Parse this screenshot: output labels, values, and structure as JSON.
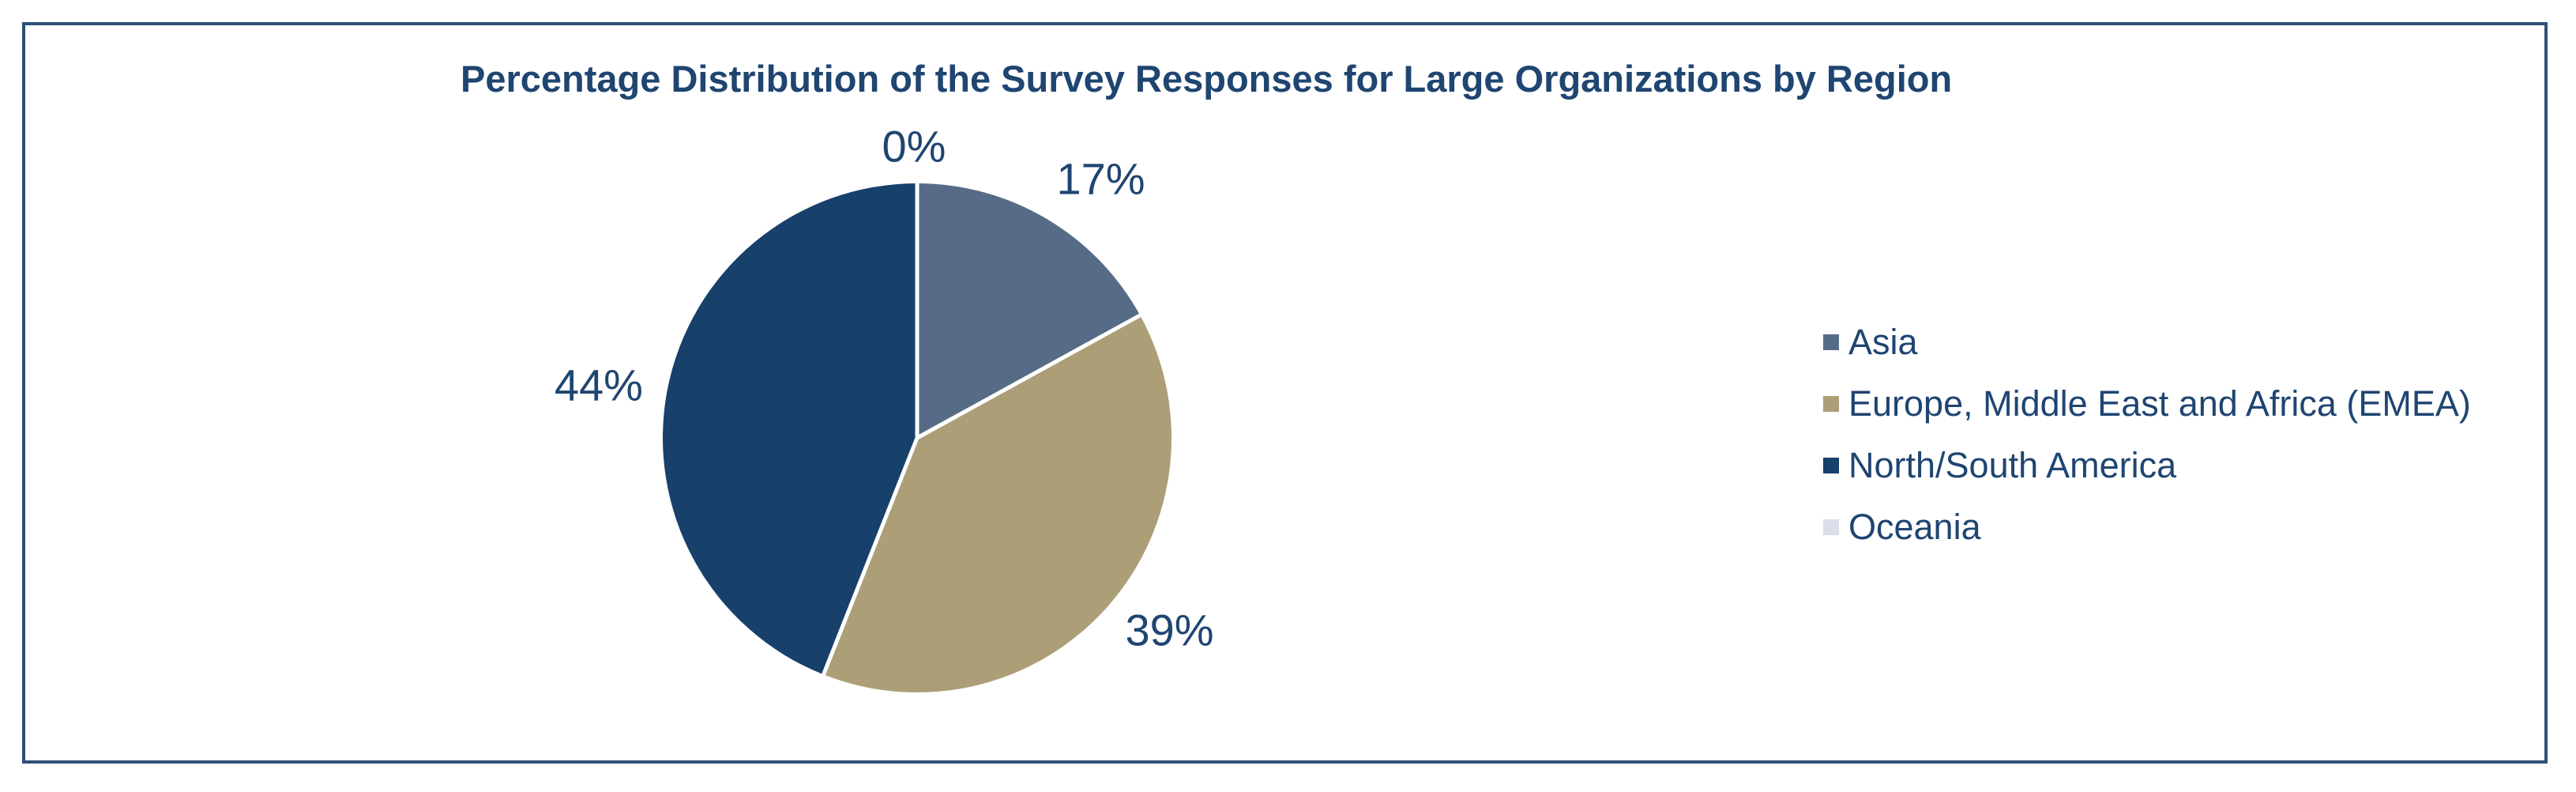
{
  "chart_data": {
    "type": "pie",
    "title": "Percentage Distribution of the Survey Responses for Large Organizations by Region",
    "categories": [
      "Asia",
      "Europe, Middle East and Africa (EMEA)",
      "North/South America",
      "Oceania"
    ],
    "values": [
      17,
      39,
      44,
      0
    ],
    "data_labels": [
      "17%",
      "39%",
      "44%",
      "0%"
    ],
    "colors": [
      "#566C86",
      "#AC9F77",
      "#17406B",
      "#D9DEE8"
    ],
    "start_angle_deg": 0,
    "direction": "clockwise",
    "legend_position": "right",
    "title_color": "#1F4571",
    "data_label_color": "#1F4571",
    "frame_border_color": "#2E5078",
    "background_color": "#FFFFFF",
    "separator_color": "#FFFFFF"
  }
}
